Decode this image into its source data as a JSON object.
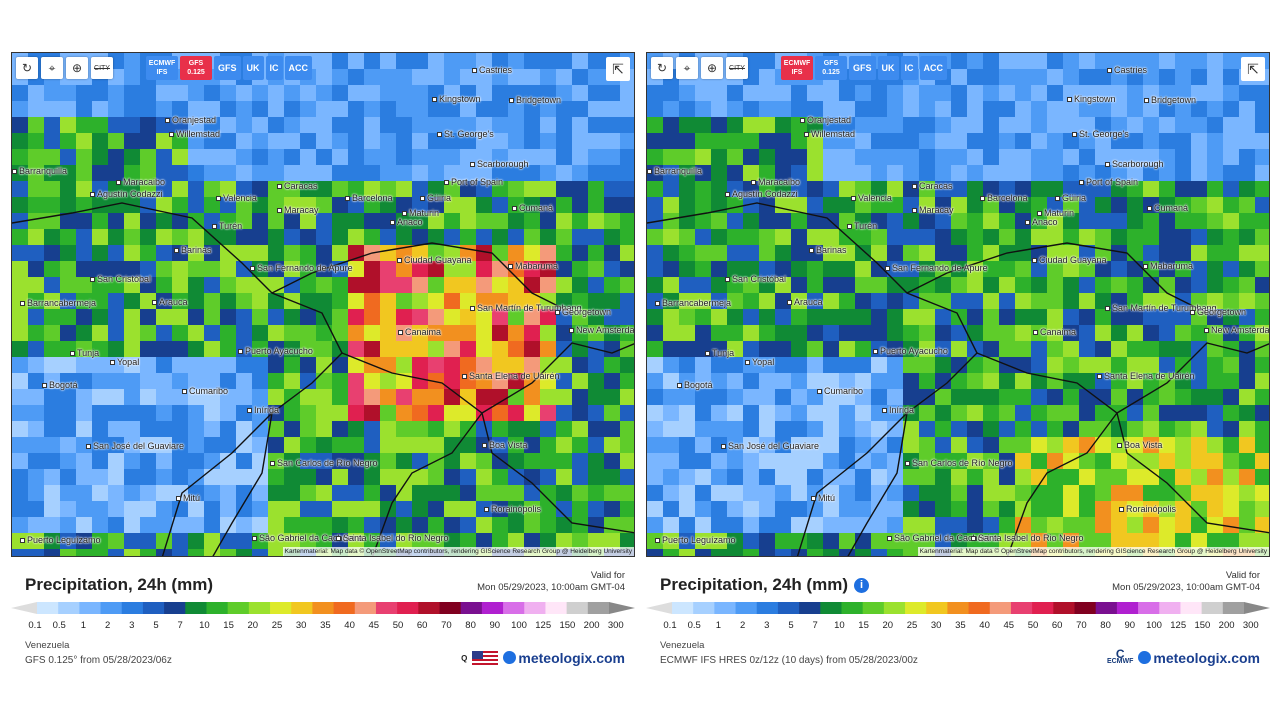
{
  "panels": [
    {
      "toolbar": {
        "refresh": "refresh-icon",
        "location": "pin-icon",
        "zoom": "zoom-icon",
        "city": "CITY"
      },
      "models": [
        {
          "label": "ECMWF\nIFS",
          "active": false
        },
        {
          "label": "GFS\n0.125",
          "active": true
        },
        {
          "label": "GFS",
          "active": false
        },
        {
          "label": "UK",
          "active": false
        },
        {
          "label": "IC",
          "active": false
        },
        {
          "label": "ACC",
          "active": false
        }
      ],
      "title": "Precipitation, 24h (mm)",
      "valid_label": "Valid for",
      "valid_time": "Mon 05/29/2023, 10:00am GMT-04",
      "region": "Venezuela",
      "source": "GFS 0.125° from 05/28/2023/06z",
      "attribution": "Kartenmaterial: Map data © OpenStreetMap contributors, rendering GIScience Research Group @ Heidelberg University",
      "brand": "meteologix.com",
      "has_info_icon": false
    },
    {
      "toolbar": {
        "refresh": "refresh-icon",
        "location": "pin-icon",
        "zoom": "zoom-icon",
        "city": "CITY"
      },
      "models": [
        {
          "label": "ECMWF\nIFS",
          "active": true
        },
        {
          "label": "GFS\n0.125",
          "active": false
        },
        {
          "label": "GFS",
          "active": false
        },
        {
          "label": "UK",
          "active": false
        },
        {
          "label": "IC",
          "active": false
        },
        {
          "label": "ACC",
          "active": false
        }
      ],
      "title": "Precipitation, 24h (mm)",
      "valid_label": "Valid for",
      "valid_time": "Mon 05/29/2023, 10:00am GMT-04",
      "region": "Venezuela",
      "source": "ECMWF IFS HRES 0z/12z (10 days) from 05/28/2023/00z",
      "attribution": "Kartenmaterial: Map data © OpenStreetMap contributors, rendering GIScience Research Group @ Heidelberg University",
      "brand": "meteologix.com",
      "ecmwf_logo": "ECMWF",
      "has_info_icon": true
    }
  ],
  "cities": [
    "Castries",
    "Kingstown",
    "Bridgetown",
    "Oranjestad",
    "Willemstad",
    "St. George's",
    "Scarborough",
    "Port of Spain",
    "Barranquilla",
    "Maracaibo",
    "Caracas",
    "Valencia",
    "Barcelona",
    "Maracay",
    "Güiria",
    "Maturin",
    "Agustín Codazzi",
    "Anaco",
    "Turén",
    "Barinas",
    "Ciudad Guayana",
    "San Fernando de Apure",
    "Mabaruma",
    "San Cristóbal",
    "Barrancabermeja",
    "Arauca",
    "San Martín de Turumbang",
    "Georgetown",
    "New Amsterdam",
    "Canaima",
    "Tunja",
    "Yopal",
    "Puerto Ayacucho",
    "Bogotá",
    "Santa Elena de Uairén",
    "Cumaribo",
    "Inírida",
    "San José del Guaviare",
    "San Carlos de Río Negro",
    "Boa Vista",
    "Mitú",
    "Rorainópolis",
    "São Gabriel da Cachoeira",
    "Santa Isabel do Rio Negro",
    "Puerto Leguízamo",
    "Cumaná"
  ],
  "legend": {
    "ticks": [
      "0.1",
      "0.5",
      "1",
      "2",
      "3",
      "5",
      "7",
      "10",
      "15",
      "20",
      "25",
      "30",
      "35",
      "40",
      "45",
      "50",
      "60",
      "70",
      "80",
      "90",
      "100",
      "125",
      "150",
      "200",
      "300"
    ],
    "colors": [
      "#cce6ff",
      "#a6d0ff",
      "#7ab6ff",
      "#4e9bf5",
      "#2b7de0",
      "#1f5fc0",
      "#173f8f",
      "#108a35",
      "#2db12b",
      "#5fcc2a",
      "#9be12e",
      "#ddea2a",
      "#f1c720",
      "#f2901f",
      "#f06a20",
      "#f49a7a",
      "#e84070",
      "#e02050",
      "#b0102a",
      "#800020",
      "#7a1090",
      "#b020d0",
      "#d86ee8",
      "#f0b0f0",
      "#ffe6f8",
      "#cfcfcf",
      "#a0a0a0"
    ]
  }
}
